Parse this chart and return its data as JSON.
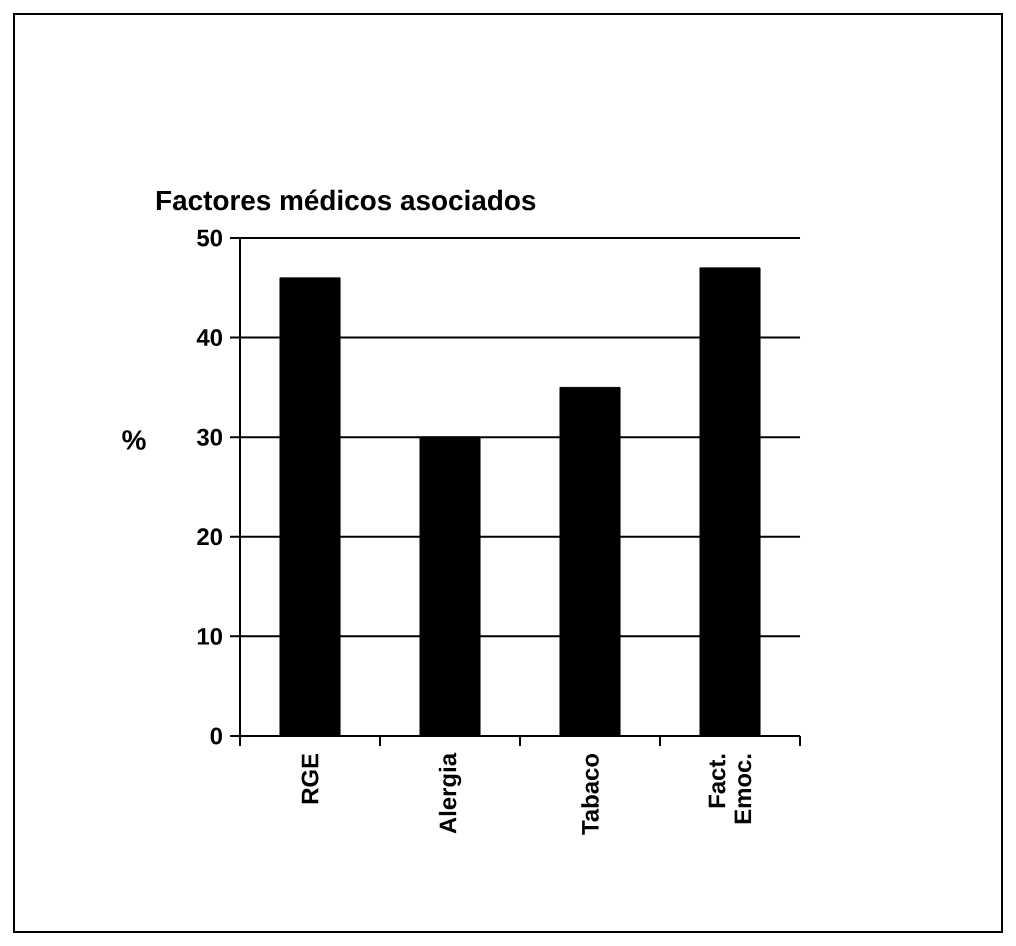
{
  "chart_data": {
    "type": "bar",
    "title": "Factores médicos asociados",
    "ylabel": "%",
    "categories": [
      "RGE",
      "Alergia",
      "Tabaco",
      "Fact. Emoc."
    ],
    "values": [
      46,
      30,
      35,
      47
    ],
    "color": "#000000",
    "ylim": [
      0,
      50
    ],
    "yticks": [
      0,
      10,
      20,
      30,
      40,
      50
    ],
    "grid": "y"
  }
}
